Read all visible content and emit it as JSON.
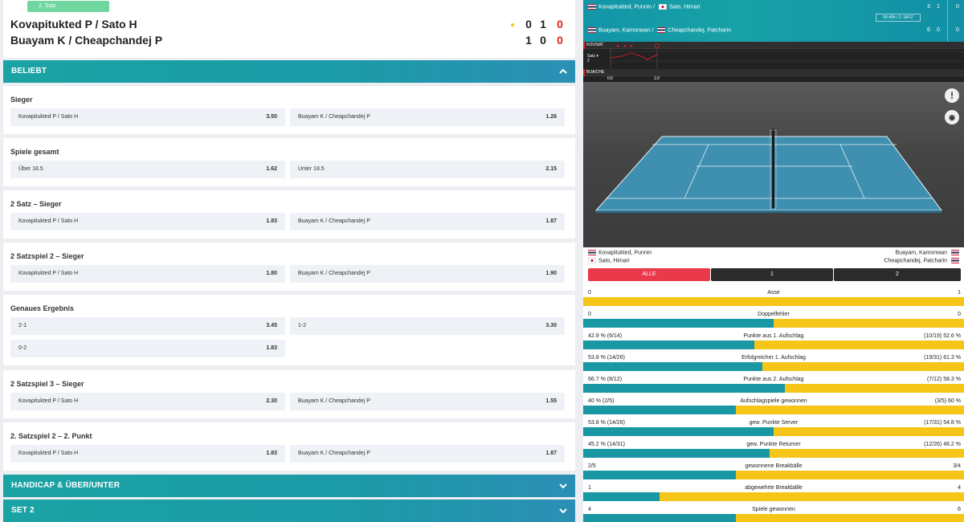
{
  "scoreboard": {
    "set_badge": "2. Satz",
    "team1": "Kovapitukted P / Sato H",
    "team2": "Buayam K / Cheapchandej P",
    "team1_scores": [
      "0",
      "1",
      "0"
    ],
    "team2_scores": [
      "1",
      "0",
      "0"
    ]
  },
  "sections": {
    "popular": "BELIEBT",
    "handicap": "HANDICAP & ÜBER/UNTER",
    "set2": "SET 2"
  },
  "markets": [
    {
      "title": "Sieger",
      "odds": [
        {
          "label": "Kovapitukted P / Sato H",
          "value": "3.50"
        },
        {
          "label": "Buayam K / Cheapchandej P",
          "value": "1.26"
        }
      ]
    },
    {
      "title": "Spiele gesamt",
      "odds": [
        {
          "label": "Über 18.5",
          "value": "1.62"
        },
        {
          "label": "Unter 18.5",
          "value": "2.15"
        }
      ]
    },
    {
      "title": "2 Satz – Sieger",
      "odds": [
        {
          "label": "Kovapitukted P / Sato H",
          "value": "1.83"
        },
        {
          "label": "Buayam K / Cheapchandej P",
          "value": "1.87"
        }
      ]
    },
    {
      "title": "2 Satzspiel 2 – Sieger",
      "odds": [
        {
          "label": "Kovapitukted P / Sato H",
          "value": "1.80"
        },
        {
          "label": "Buayam K / Cheapchandej P",
          "value": "1.90"
        }
      ]
    },
    {
      "title": "Genaues Ergebnis",
      "odds": [
        {
          "label": "2-1",
          "value": "3.45"
        },
        {
          "label": "1-2",
          "value": "3.30"
        },
        {
          "label": "0-2",
          "value": "1.83"
        }
      ]
    },
    {
      "title": "2 Satzspiel 3 – Sieger",
      "odds": [
        {
          "label": "Kovapitukted P / Sato H",
          "value": "2.30"
        },
        {
          "label": "Buayam K / Cheapchandej P",
          "value": "1.55"
        }
      ]
    },
    {
      "title": "2. Satzspiel 2 – 2. Punkt",
      "odds": [
        {
          "label": "Kovapitukted P / Sato H",
          "value": "1.83"
        },
        {
          "label": "Buayam K / Cheapchandej P",
          "value": "1.87"
        }
      ]
    }
  ],
  "live": {
    "header": {
      "team1_p1": "Kovapitukted, Punnin /",
      "team1_p2": "Sato, Himari",
      "team2_p1": "Buayam, Kamonwan /",
      "team2_p2": "Cheapchandej, Patcharin",
      "team1_sets": [
        "3",
        "1",
        "0"
      ],
      "team2_sets": [
        "6",
        "0",
        "0"
      ],
      "time": "00:45h / 2. SATZ"
    },
    "timeline": {
      "row1": "KOV/SAT",
      "row2": "BUA/CHE",
      "set_label": "Satz",
      "set_value": "2",
      "x0": "0.0",
      "x1": "1.0"
    },
    "players": {
      "left1": "Kovapitukted, Punnin",
      "left2": "Sato, Himari",
      "right1": "Buayam, Kamonwan",
      "right2": "Cheapchandej, Patcharin"
    },
    "tabs": [
      "ALLE",
      "1",
      "2"
    ],
    "stats": [
      {
        "label": "Asse",
        "left": "0",
        "right": "1",
        "left_share": 0.0
      },
      {
        "label": "Doppelfehler",
        "left": "0",
        "right": "0",
        "left_share": 0.5
      },
      {
        "label": "Punkte aus 1. Aufschlag",
        "left": "42.9 % (6/14)",
        "right": "(10/19) 52.6 %",
        "left_share": 0.45
      },
      {
        "label": "Erfolgreicher 1. Aufschlag",
        "left": "53.8 % (14/26)",
        "right": "(19/31) 61.3 %",
        "left_share": 0.47
      },
      {
        "label": "Punkte aus 2. Aufschlag",
        "left": "66.7 % (8/12)",
        "right": "(7/12) 58.3 %",
        "left_share": 0.53
      },
      {
        "label": "Aufschlagspiele gewonnen",
        "left": "40 % (2/5)",
        "right": "(3/5) 60 %",
        "left_share": 0.4
      },
      {
        "label": "gew. Punkte Server",
        "left": "53.8 % (14/26)",
        "right": "(17/31) 54.8 %",
        "left_share": 0.5
      },
      {
        "label": "gew. Punkte Returner",
        "left": "45.2 % (14/31)",
        "right": "(12/26) 46.2 %",
        "left_share": 0.49
      },
      {
        "label": "gewonnene Breakbälle",
        "left": "2/5",
        "right": "3/4",
        "left_share": 0.4
      },
      {
        "label": "abgewehrte Breakbälle",
        "left": "1",
        "right": "4",
        "left_share": 0.2
      },
      {
        "label": "Spiele gewonnen",
        "left": "4",
        "right": "6",
        "left_share": 0.4
      }
    ]
  }
}
